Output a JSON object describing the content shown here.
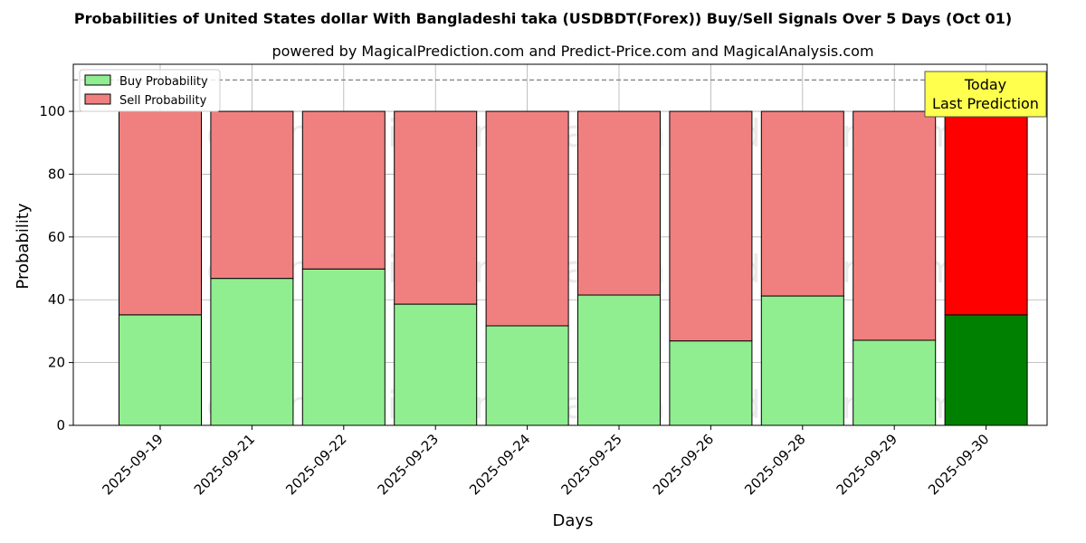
{
  "chart_data": {
    "type": "bar",
    "stacked": true,
    "title": "Probabilities of United States dollar With Bangladeshi taka (USDBDT(Forex)) Buy/Sell Signals Over 5 Days (Oct 01)",
    "subtitle": "powered by MagicalPrediction.com and Predict-Price.com and MagicalAnalysis.com",
    "xlabel": "Days",
    "ylabel": "Probability",
    "ylim": [
      0,
      115
    ],
    "yticks": [
      "0",
      "20",
      "40",
      "60",
      "80",
      "100"
    ],
    "grid": true,
    "legend_position": "top-left",
    "reference_line": 110,
    "categories": [
      "2025-09-19",
      "2025-09-21",
      "2025-09-22",
      "2025-09-23",
      "2025-09-24",
      "2025-09-25",
      "2025-09-26",
      "2025-09-28",
      "2025-09-29",
      "2025-09-30"
    ],
    "series": [
      {
        "name": "Buy Probability",
        "color": "#90ee90",
        "edge": "#000000",
        "highlight_color": "#008000",
        "values": [
          35.2,
          46.8,
          49.8,
          38.6,
          31.7,
          41.5,
          26.9,
          41.2,
          27.1,
          35.2
        ]
      },
      {
        "name": "Sell Probability",
        "color": "#f08080",
        "edge": "#000000",
        "highlight_color": "#ff0000",
        "values": [
          64.8,
          53.2,
          50.2,
          61.4,
          68.3,
          58.5,
          73.1,
          58.8,
          72.9,
          64.8
        ]
      }
    ],
    "highlight_index": 9,
    "annotation": {
      "lines": [
        "Today",
        "Last Prediction"
      ],
      "background": "#ffff4d"
    },
    "watermarks": [
      "MagicalAnalysis.com",
      "MagicalPrediction.com"
    ]
  }
}
